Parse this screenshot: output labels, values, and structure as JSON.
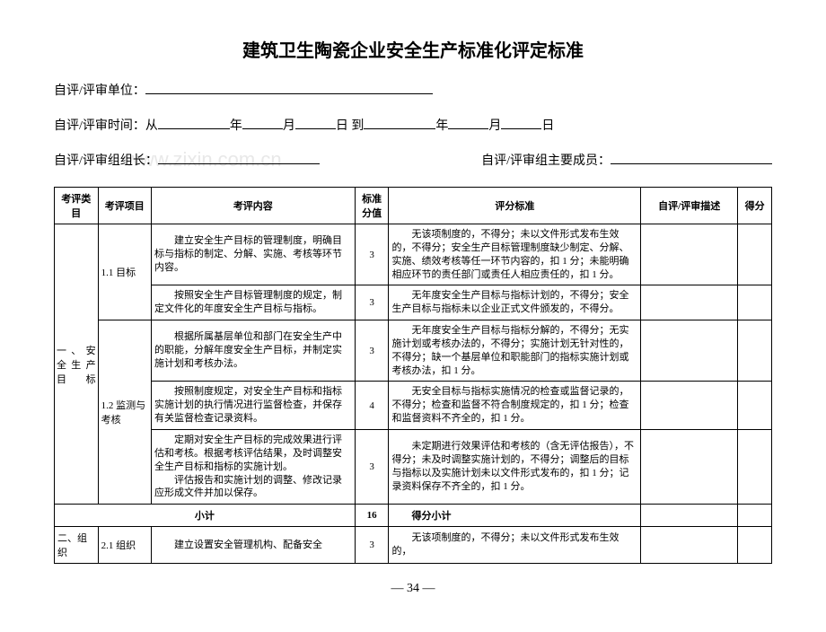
{
  "page": {
    "title": "建筑卫生陶瓷企业安全生产标准化评定标准",
    "page_number": "— 34 —"
  },
  "form": {
    "unit_label": "自评/评审单位：",
    "time_label": "自评/评审时间：从",
    "year1": "年",
    "month1": "月",
    "day1": "日 到",
    "year2": "年",
    "month2": "月",
    "day2": "日",
    "leader_label": "自评/评审组组长：",
    "members_label": "自评/评审组主要成员："
  },
  "table": {
    "headers": {
      "h1": "考评类目",
      "h2": "考评项目",
      "h3": "考评内容",
      "h4": "标准分值",
      "h5": "评分标准",
      "h6": "自评/评审描述",
      "h7": "得分"
    },
    "rows": [
      {
        "cat": "一、安全生产目标",
        "item": "1.1 目标",
        "content": "建立安全生产目标的管理制度，明确目标与指标的制定、分解、实施、考核等环节内容。",
        "score": "3",
        "criteria": "无该项制度的，不得分；未以文件形式发布生效的，不得分；安全生产目标管理制度缺少制定、分解、实施、绩效考核等任一环节内容的，扣 1 分；未能明确相应环节的责任部门或责任人相应责任的，扣 1 分。"
      },
      {
        "content": "按照安全生产目标管理制度的规定，制定文件化的年度安全生产目标与指标。",
        "score": "3",
        "criteria": "无年度安全生产目标与指标计划的，不得分；安全生产目标与指标未以企业正式文件颁发的，不得分。"
      },
      {
        "item": "1.2 监测与考核",
        "content": "根据所属基层单位和部门在安全生产中的职能，分解年度安全生产目标，并制定实施计划和考核办法。",
        "score": "3",
        "criteria": "无年度安全生产目标与指标分解的，不得分；无实施计划或考核办法的，不得分；实施计划无针对性的，不得分；缺一个基层单位和职能部门的指标实施计划或考核办法，扣 1 分。"
      },
      {
        "content": "按照制度规定，对安全生产目标和指标实施计划的执行情况进行监督检查，并保存有关监督检查记录资料。",
        "score": "4",
        "criteria": "无安全目标与指标实施情况的检查或监督记录的，不得分；检查和监督不符合制度规定的，扣 1 分；检查和监督资料不齐全的，扣 1 分。"
      },
      {
        "content": "定期对安全生产目标的完成效果进行评估和考核。根据考核评估结果，及时调整安全生产目标和指标的实施计划。",
        "content2": "评估报告和实施计划的调整、修改记录应形成文件并加以保存。",
        "score": "3",
        "criteria": "未定期进行效果评估和考核的（含无评估报告），不得分；未及时调整实施计划的，不得分；调整后的目标与指标以及实施计划未以文件形式发布的，扣 1 分；记录资料保存不齐全的，扣 1 分。"
      }
    ],
    "subtotal": {
      "label": "小计",
      "score": "16",
      "criteria": "得分小计"
    },
    "next_row": {
      "cat": "二、组织",
      "item": "2.1 组织",
      "content": "建立设置安全管理机构、配备安全",
      "score": "3",
      "criteria": "无该项制度的，不得分；未以文件形式发布生效的，"
    }
  },
  "watermark": "www.zixin.com.cn"
}
